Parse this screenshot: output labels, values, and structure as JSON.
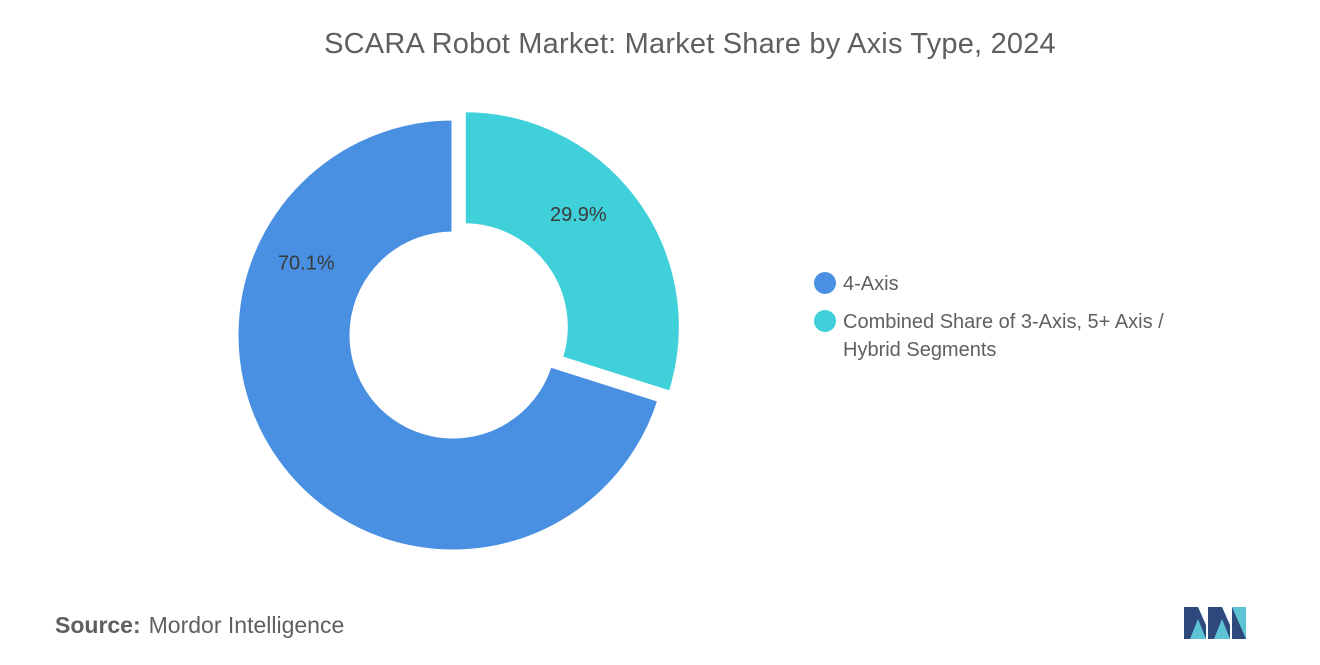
{
  "chart_data": {
    "type": "pie",
    "title": "SCARA Robot Market: Market Share by Axis Type, 2024",
    "categories": [
      "4-Axis",
      "Combined Share of 3-Axis, 5+ Axis / Hybrid Segments"
    ],
    "values": [
      70.1,
      29.9
    ],
    "value_labels": [
      "70.1%",
      "29.9%"
    ],
    "colors": [
      "#4a90e2",
      "#40d0da"
    ],
    "donut": true,
    "legend": "right"
  },
  "legend": {
    "items": [
      {
        "label": "4-Axis",
        "color": "#4a90e2"
      },
      {
        "label": "Combined Share of 3-Axis, 5+ Axis / Hybrid Segments",
        "color": "#40d0da"
      }
    ]
  },
  "source": {
    "key": "Source:",
    "value": "Mordor Intelligence"
  },
  "logo": {
    "icon": "mordor-intelligence-logo-icon",
    "colors": [
      "#2e4a7d",
      "#5dc4d3"
    ]
  }
}
